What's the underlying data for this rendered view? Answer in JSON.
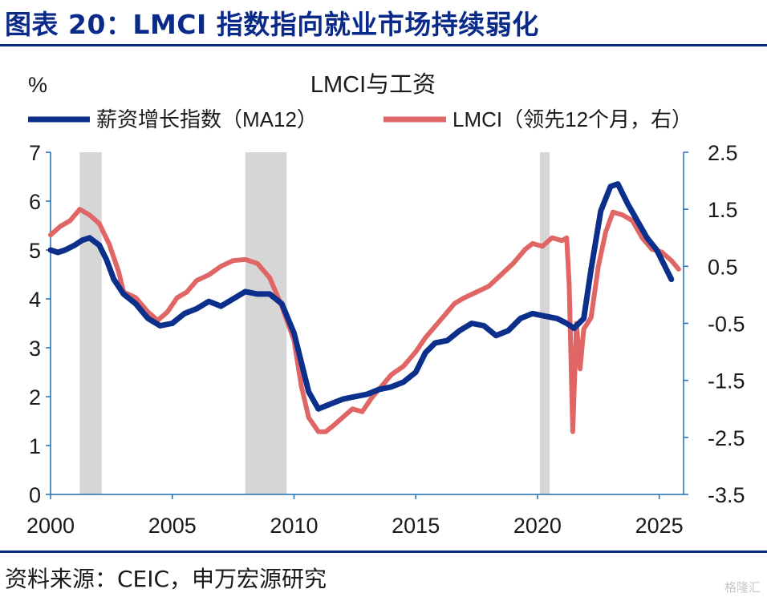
{
  "figure": {
    "title": "图表 20：LMCI 指数指向就业市场持续弱化",
    "source": "资料来源：CEIC，申万宏源研究",
    "watermark": "格隆汇"
  },
  "colors": {
    "title": "#0a2a8a",
    "wage": "#0d2f8c",
    "lmci": "#e06666",
    "recession": "#d6d6d6",
    "axis": "#1f6fb4"
  },
  "chart_data": {
    "type": "line",
    "title": "LMCI与工资",
    "left_unit": "%",
    "ylim": [
      0,
      7
    ],
    "y2lim": [
      -3.5,
      2.5
    ],
    "xlim": [
      2000,
      2026
    ],
    "x_ticks": [
      "2000",
      "2005",
      "2010",
      "2015",
      "2020",
      "2025"
    ],
    "y_ticks": [
      "0",
      "1",
      "2",
      "3",
      "4",
      "5",
      "6",
      "7"
    ],
    "y2_ticks": [
      "-3.5",
      "-2.5",
      "-1.5",
      "-0.5",
      "0.5",
      "1.5",
      "2.5"
    ],
    "recessions": [
      [
        2001.2,
        2002.1
      ],
      [
        2008.0,
        2009.7
      ],
      [
        2020.1,
        2020.5
      ]
    ],
    "legend_position": "top",
    "series": [
      {
        "name": "薪资增长指数（MA12）",
        "axis": "left",
        "points": [
          [
            2000.0,
            5.0
          ],
          [
            2000.3,
            4.95
          ],
          [
            2000.6,
            5.0
          ],
          [
            2001.0,
            5.1
          ],
          [
            2001.3,
            5.2
          ],
          [
            2001.6,
            5.25
          ],
          [
            2002.0,
            5.1
          ],
          [
            2002.3,
            4.8
          ],
          [
            2002.6,
            4.4
          ],
          [
            2003.0,
            4.1
          ],
          [
            2003.5,
            3.9
          ],
          [
            2004.0,
            3.6
          ],
          [
            2004.5,
            3.45
          ],
          [
            2005.0,
            3.5
          ],
          [
            2005.5,
            3.7
          ],
          [
            2006.0,
            3.8
          ],
          [
            2006.5,
            3.95
          ],
          [
            2007.0,
            3.85
          ],
          [
            2007.5,
            4.0
          ],
          [
            2008.0,
            4.15
          ],
          [
            2008.5,
            4.1
          ],
          [
            2009.0,
            4.1
          ],
          [
            2009.5,
            3.9
          ],
          [
            2010.0,
            3.3
          ],
          [
            2010.3,
            2.7
          ],
          [
            2010.6,
            2.1
          ],
          [
            2011.0,
            1.75
          ],
          [
            2011.5,
            1.85
          ],
          [
            2012.0,
            1.95
          ],
          [
            2012.5,
            2.0
          ],
          [
            2013.0,
            2.05
          ],
          [
            2013.5,
            2.15
          ],
          [
            2014.0,
            2.2
          ],
          [
            2014.5,
            2.3
          ],
          [
            2015.0,
            2.5
          ],
          [
            2015.4,
            2.9
          ],
          [
            2015.8,
            3.1
          ],
          [
            2016.3,
            3.15
          ],
          [
            2016.8,
            3.35
          ],
          [
            2017.3,
            3.5
          ],
          [
            2017.8,
            3.45
          ],
          [
            2018.3,
            3.25
          ],
          [
            2018.8,
            3.35
          ],
          [
            2019.3,
            3.6
          ],
          [
            2019.8,
            3.7
          ],
          [
            2020.3,
            3.65
          ],
          [
            2020.8,
            3.6
          ],
          [
            2021.2,
            3.5
          ],
          [
            2021.5,
            3.4
          ],
          [
            2021.9,
            3.6
          ],
          [
            2022.2,
            4.6
          ],
          [
            2022.6,
            5.8
          ],
          [
            2023.0,
            6.3
          ],
          [
            2023.3,
            6.35
          ],
          [
            2023.7,
            5.95
          ],
          [
            2024.1,
            5.6
          ],
          [
            2024.5,
            5.25
          ],
          [
            2024.9,
            5.0
          ],
          [
            2025.3,
            4.6
          ],
          [
            2025.5,
            4.4
          ]
        ]
      },
      {
        "name": "LMCI（领先12个月，右）",
        "axis": "right",
        "points": [
          [
            2000.0,
            1.05
          ],
          [
            2000.4,
            1.2
          ],
          [
            2000.8,
            1.3
          ],
          [
            2001.2,
            1.5
          ],
          [
            2001.6,
            1.4
          ],
          [
            2002.0,
            1.25
          ],
          [
            2002.4,
            0.9
          ],
          [
            2002.8,
            0.4
          ],
          [
            2003.0,
            0.05
          ],
          [
            2003.5,
            -0.05
          ],
          [
            2004.0,
            -0.3
          ],
          [
            2004.4,
            -0.45
          ],
          [
            2004.8,
            -0.3
          ],
          [
            2005.2,
            -0.05
          ],
          [
            2005.6,
            0.05
          ],
          [
            2006.0,
            0.25
          ],
          [
            2006.5,
            0.35
          ],
          [
            2007.0,
            0.5
          ],
          [
            2007.5,
            0.6
          ],
          [
            2008.0,
            0.62
          ],
          [
            2008.5,
            0.55
          ],
          [
            2009.0,
            0.3
          ],
          [
            2009.5,
            -0.2
          ],
          [
            2010.0,
            -0.8
          ],
          [
            2010.3,
            -1.6
          ],
          [
            2010.6,
            -2.15
          ],
          [
            2011.0,
            -2.4
          ],
          [
            2011.3,
            -2.4
          ],
          [
            2011.6,
            -2.3
          ],
          [
            2012.0,
            -2.15
          ],
          [
            2012.4,
            -2.0
          ],
          [
            2012.8,
            -2.05
          ],
          [
            2013.2,
            -1.8
          ],
          [
            2013.6,
            -1.6
          ],
          [
            2014.0,
            -1.4
          ],
          [
            2014.5,
            -1.25
          ],
          [
            2015.0,
            -1.0
          ],
          [
            2015.4,
            -0.75
          ],
          [
            2015.8,
            -0.55
          ],
          [
            2016.2,
            -0.35
          ],
          [
            2016.6,
            -0.15
          ],
          [
            2017.0,
            -0.05
          ],
          [
            2017.5,
            0.05
          ],
          [
            2018.0,
            0.15
          ],
          [
            2018.5,
            0.35
          ],
          [
            2019.0,
            0.55
          ],
          [
            2019.5,
            0.8
          ],
          [
            2019.8,
            0.9
          ],
          [
            2020.2,
            0.85
          ],
          [
            2020.6,
            1.0
          ],
          [
            2021.0,
            0.95
          ],
          [
            2021.2,
            1.0
          ],
          [
            2021.3,
            0.2
          ],
          [
            2021.45,
            -2.4
          ],
          [
            2021.6,
            -0.5
          ],
          [
            2021.75,
            -1.3
          ],
          [
            2021.9,
            -0.6
          ],
          [
            2022.2,
            -0.4
          ],
          [
            2022.5,
            0.5
          ],
          [
            2022.8,
            1.1
          ],
          [
            2023.1,
            1.45
          ],
          [
            2023.5,
            1.4
          ],
          [
            2023.9,
            1.3
          ],
          [
            2024.3,
            1.0
          ],
          [
            2024.7,
            0.8
          ],
          [
            2025.1,
            0.75
          ],
          [
            2025.5,
            0.6
          ],
          [
            2025.8,
            0.45
          ]
        ]
      }
    ]
  }
}
